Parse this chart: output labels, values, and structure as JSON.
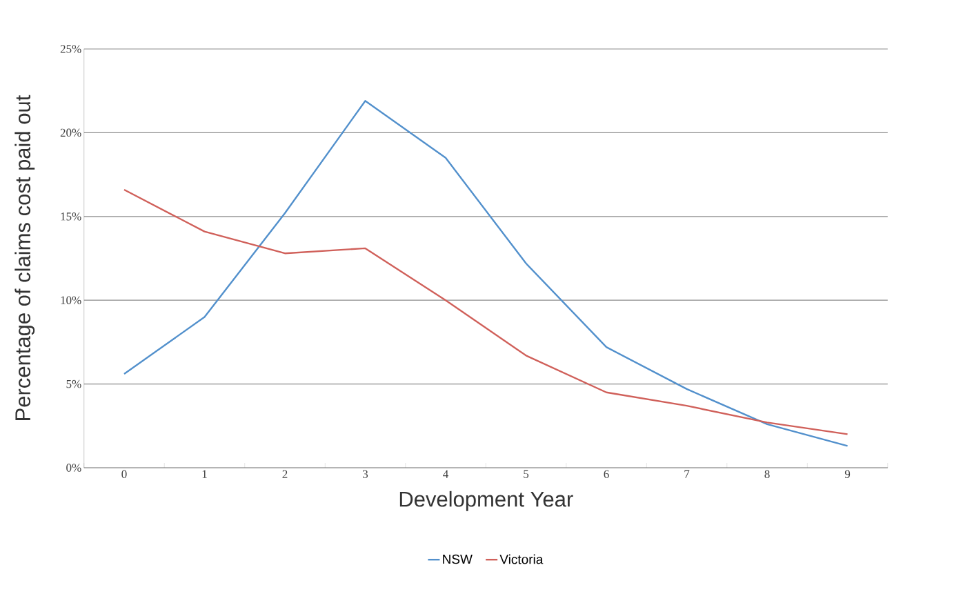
{
  "chart_data": {
    "type": "line",
    "xlabel": "Development Year",
    "ylabel": "Percentage of claims cost paid out",
    "categories": [
      "0",
      "1",
      "2",
      "3",
      "4",
      "5",
      "6",
      "7",
      "8",
      "9"
    ],
    "series": [
      {
        "name": "NSW",
        "color": "#5290cc",
        "values": [
          5.6,
          9.0,
          15.2,
          21.9,
          18.5,
          12.2,
          7.2,
          4.7,
          2.6,
          1.3
        ]
      },
      {
        "name": "Victoria",
        "color": "#d0605a",
        "values": [
          16.6,
          14.1,
          12.8,
          13.1,
          10.0,
          6.7,
          4.5,
          3.7,
          2.7,
          2.0
        ]
      }
    ],
    "ylim": [
      0,
      25
    ],
    "yticks": [
      {
        "value": 0,
        "label": "0%"
      },
      {
        "value": 5,
        "label": "5%"
      },
      {
        "value": 10,
        "label": "10%"
      },
      {
        "value": 15,
        "label": "15%"
      },
      {
        "value": 20,
        "label": "20%"
      },
      {
        "value": 25,
        "label": "25%"
      }
    ],
    "grid": "y",
    "legend": "bottom",
    "marker": "none",
    "line_style": "solid"
  }
}
